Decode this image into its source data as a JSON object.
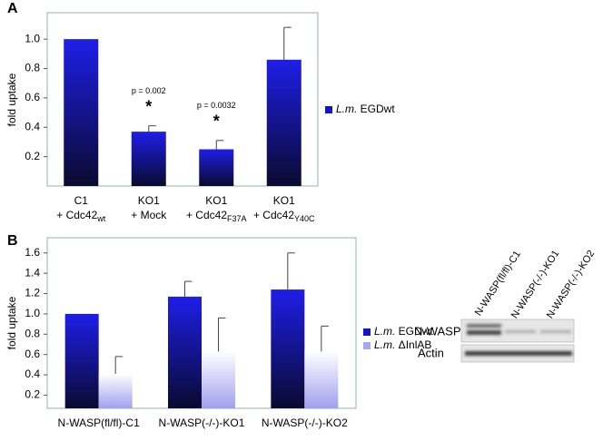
{
  "chart_data": [
    {
      "type": "bar",
      "panel": "A",
      "y_label": "fold uptake",
      "categories": [
        {
          "lines": [
            "C1",
            "+ Cdc42"
          ],
          "sub": "wt"
        },
        {
          "lines": [
            "KO1",
            "+ Mock"
          ]
        },
        {
          "lines": [
            "KO1",
            "+ Cdc42"
          ],
          "sub": "F37A"
        },
        {
          "lines": [
            "KO1",
            "+ Cdc42"
          ],
          "sub": "Y40C"
        }
      ],
      "series": [
        {
          "name": "L.m. EGDwt",
          "color": "#1414c8",
          "gradient": [
            "#1e1ee8",
            "#0a0a30"
          ],
          "values": [
            1.0,
            0.37,
            0.25,
            0.86
          ],
          "errors": [
            null,
            0.04,
            0.06,
            0.22
          ]
        }
      ],
      "p_values": [
        null,
        "p = 0.002",
        "p = 0.0032",
        null
      ],
      "stars": [
        null,
        "*",
        "*",
        null
      ],
      "ylim": [
        0,
        1.18
      ],
      "yticks": [
        0.2,
        0.4,
        0.6,
        0.8,
        {
          "value": 1,
          "label": "1.0"
        }
      ]
    },
    {
      "type": "bar",
      "panel": "B",
      "y_label": "fold uptake",
      "categories": [
        "N-WASP(fl/fl)-C1",
        "N-WASP(-/-)-KO1",
        "N-WASP(-/-)-KO2"
      ],
      "series": [
        {
          "name": "L.m. EGDwt",
          "color": "#1414c8",
          "gradient": [
            "#1e1ee8",
            "#0a0a30"
          ],
          "values": [
            1.0,
            1.17,
            1.24
          ],
          "errors": [
            null,
            0.15,
            0.36
          ]
        },
        {
          "name": "L.m. ΔInlAB",
          "color": "#a8a8f0",
          "gradient": [
            "#ffffff",
            "#a0a0ee"
          ],
          "values": [
            0.41,
            0.63,
            0.63
          ],
          "errors": [
            0.17,
            0.33,
            0.25
          ]
        }
      ],
      "ylim": [
        0.07,
        1.75
      ],
      "yticks": [
        0.2,
        0.4,
        0.6,
        0.8,
        {
          "value": 1,
          "label": "1.0"
        },
        1.2,
        1.4,
        1.6
      ]
    }
  ],
  "blot": {
    "lanes": [
      "N-WASP(fl/fl)-C1",
      "N-WASP(-/-)-KO1",
      "N-WASP(-/-)-KO2"
    ],
    "rows": [
      "N-WASP",
      "Actin"
    ]
  }
}
